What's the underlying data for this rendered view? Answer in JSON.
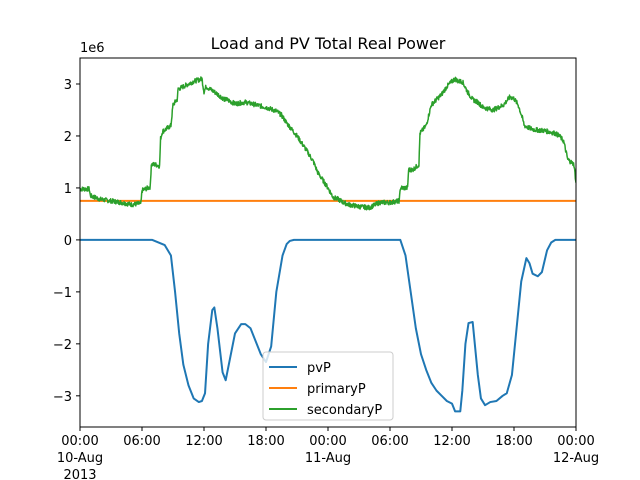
{
  "chart_data": {
    "type": "line",
    "title": "Load and PV Total Real Power",
    "xlabel": "",
    "ylabel": "",
    "y_offset_label": "1e6",
    "x_unit": "hours since 10-Aug 2013 00:00",
    "xlim": [
      0,
      48
    ],
    "ylim": [
      -3.6,
      3.5
    ],
    "grid": false,
    "legend_position": "lower center",
    "x_ticks": [
      {
        "x": 0,
        "label": "00:00",
        "sub": "10-Aug",
        "sub2": "2013"
      },
      {
        "x": 6,
        "label": "06:00"
      },
      {
        "x": 12,
        "label": "12:00"
      },
      {
        "x": 18,
        "label": "18:00"
      },
      {
        "x": 24,
        "label": "00:00",
        "sub": "11-Aug"
      },
      {
        "x": 30,
        "label": "06:00"
      },
      {
        "x": 36,
        "label": "12:00"
      },
      {
        "x": 42,
        "label": "18:00"
      },
      {
        "x": 48,
        "label": "00:00",
        "sub": "12-Aug"
      }
    ],
    "y_ticks": [
      {
        "y": 3,
        "label": "3"
      },
      {
        "y": 2,
        "label": "2"
      },
      {
        "y": 1,
        "label": "1"
      },
      {
        "y": 0,
        "label": "0"
      },
      {
        "y": -1,
        "label": "−1"
      },
      {
        "y": -2,
        "label": "−2"
      },
      {
        "y": -3,
        "label": "−3"
      }
    ],
    "series": [
      {
        "name": "pvP",
        "color": "#1f77b4",
        "x": [
          0,
          7.0,
          8.2,
          8.8,
          9.2,
          9.6,
          10.0,
          10.5,
          11.0,
          11.5,
          11.8,
          12.1,
          12.4,
          12.8,
          13.0,
          13.3,
          13.8,
          14.1,
          14.5,
          15.0,
          15.6,
          16.0,
          16.5,
          17.0,
          17.5,
          18.0,
          18.5,
          19.0,
          19.6,
          20.0,
          20.3,
          20.7,
          31.0,
          31.5,
          32.0,
          32.5,
          33.0,
          33.5,
          34.0,
          34.5,
          35.0,
          35.5,
          36.0,
          36.3,
          36.8,
          37.0,
          37.3,
          37.6,
          38.0,
          38.5,
          38.8,
          39.2,
          39.7,
          40.3,
          40.9,
          41.3,
          41.8,
          42.3,
          42.7,
          43.2,
          43.5,
          43.8,
          44.3,
          44.7,
          45.2,
          45.6,
          46.0,
          48.0
        ],
        "y": [
          0,
          0,
          -0.1,
          -0.3,
          -1.0,
          -1.8,
          -2.4,
          -2.8,
          -3.05,
          -3.12,
          -3.1,
          -2.95,
          -2.0,
          -1.35,
          -1.3,
          -1.7,
          -2.55,
          -2.7,
          -2.3,
          -1.8,
          -1.62,
          -1.62,
          -1.7,
          -1.95,
          -2.2,
          -2.35,
          -2.05,
          -1.0,
          -0.3,
          -0.08,
          -0.02,
          0,
          0,
          -0.3,
          -1.0,
          -1.7,
          -2.2,
          -2.5,
          -2.75,
          -2.9,
          -3.0,
          -3.1,
          -3.15,
          -3.3,
          -3.3,
          -2.9,
          -2.0,
          -1.6,
          -1.58,
          -2.6,
          -3.05,
          -3.18,
          -3.12,
          -3.1,
          -3.0,
          -2.95,
          -2.6,
          -1.6,
          -0.8,
          -0.35,
          -0.45,
          -0.65,
          -0.7,
          -0.62,
          -0.2,
          -0.05,
          0,
          0
        ]
      },
      {
        "name": "primaryP",
        "color": "#ff7f0e",
        "x": [
          0,
          48
        ],
        "y": [
          0.75,
          0.75
        ]
      },
      {
        "name": "secondaryP",
        "color": "#2ca02c",
        "x": [
          0,
          0.9,
          1.0,
          2.0,
          3.0,
          4.0,
          5.0,
          5.9,
          6.0,
          6.8,
          6.9,
          7.3,
          7.7,
          7.8,
          8.0,
          8.1,
          8.8,
          9.0,
          9.4,
          9.5,
          10.0,
          11.0,
          11.8,
          12.0,
          12.2,
          13.0,
          14.0,
          14.2,
          15.0,
          16.0,
          17.0,
          18.0,
          19.0,
          19.5,
          20.0,
          21.0,
          22.0,
          22.6,
          23.0,
          23.5,
          24.0,
          24.5,
          25.0,
          25.5,
          26.0,
          27.0,
          28.0,
          29.0,
          30.0,
          30.9,
          31.0,
          31.7,
          31.8,
          32.2,
          32.8,
          32.9,
          33.5,
          34.0,
          35.0,
          35.5,
          36.0,
          36.3,
          36.6,
          37.0,
          37.5,
          38.0,
          38.5,
          39.0,
          40.0,
          41.0,
          41.6,
          42.0,
          42.4,
          42.8,
          43.0,
          43.5,
          44.0,
          45.0,
          46.0,
          46.4,
          46.8,
          47.2,
          47.8,
          48.0
        ],
        "y": [
          0.98,
          0.98,
          0.85,
          0.78,
          0.75,
          0.72,
          0.68,
          0.7,
          0.95,
          1.02,
          1.45,
          1.45,
          1.42,
          1.95,
          2.1,
          2.1,
          2.2,
          2.6,
          2.7,
          2.9,
          2.95,
          3.05,
          3.1,
          2.85,
          2.95,
          2.85,
          2.7,
          2.7,
          2.62,
          2.65,
          2.6,
          2.55,
          2.48,
          2.4,
          2.25,
          2.0,
          1.7,
          1.5,
          1.3,
          1.15,
          1.0,
          0.82,
          0.78,
          0.72,
          0.68,
          0.64,
          0.62,
          0.72,
          0.72,
          0.75,
          1.0,
          1.0,
          1.35,
          1.35,
          1.45,
          2.05,
          2.2,
          2.6,
          2.8,
          2.95,
          3.05,
          3.1,
          3.05,
          3.05,
          2.85,
          2.7,
          2.65,
          2.55,
          2.5,
          2.6,
          2.75,
          2.72,
          2.6,
          2.35,
          2.2,
          2.15,
          2.12,
          2.1,
          2.05,
          2.0,
          1.9,
          1.55,
          1.45,
          1.1
        ]
      }
    ]
  }
}
